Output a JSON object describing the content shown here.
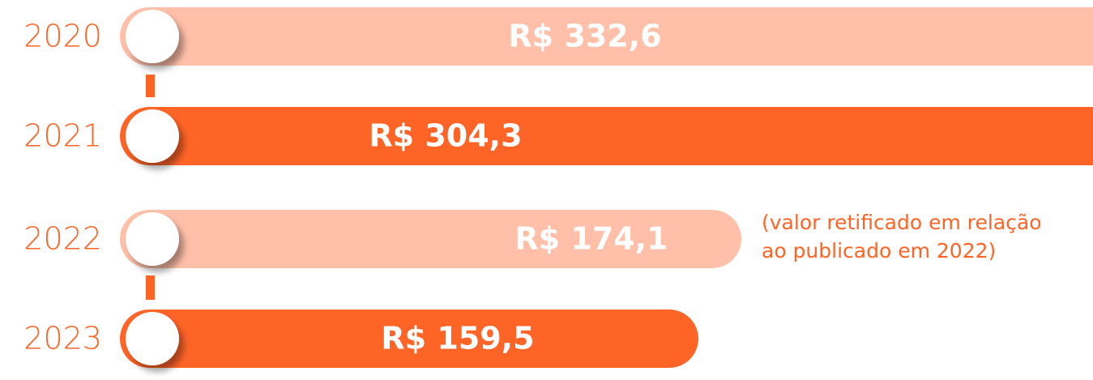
{
  "chart_data": {
    "type": "bar",
    "categories": [
      "2020",
      "2021",
      "2022",
      "2023"
    ],
    "values": [
      332.6,
      304.3,
      174.1,
      159.5
    ],
    "value_labels": [
      "R$ 332,6",
      "R$ 304,3",
      "R$ 174,1",
      "R$ 159,5"
    ],
    "colors": [
      "#ffbfa8",
      "#ff6427",
      "#ffbfa8",
      "#ff6427"
    ],
    "annotation": [
      "(valor retificado em relação",
      "ao publicado em 2022)"
    ]
  }
}
